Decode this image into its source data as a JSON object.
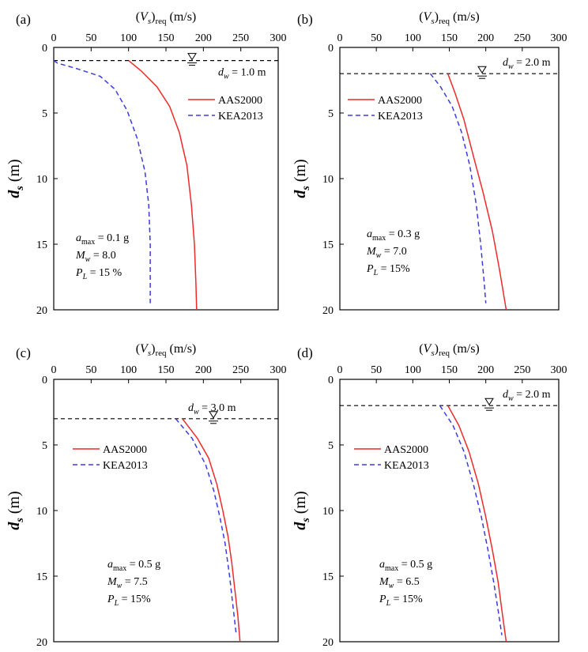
{
  "colors": {
    "aas": "#ee2a2a",
    "kea": "#3b3bdd",
    "axis": "#000000"
  },
  "chart_data": [
    {
      "panel_label": "(a)",
      "type": "line",
      "xlabel_var": "V",
      "xlabel_sub": "s",
      "xlabel_paren_sub": "req",
      "xlabel_unit": "(m/s)",
      "ylabel_var": "d",
      "ylabel_sub": "s",
      "ylabel_unit": "(m)",
      "xlim": [
        0,
        300
      ],
      "ylim": [
        0,
        20
      ],
      "y_reversed": true,
      "xticks": [
        0,
        50,
        100,
        150,
        200,
        250,
        300
      ],
      "yticks": [
        0,
        5,
        10,
        15,
        20
      ],
      "water_table": {
        "depth": 1.0,
        "label_var": "d",
        "label_sub": "w",
        "label_value": "= 1.0 m"
      },
      "legend": {
        "position": "upper-right",
        "entries": [
          "AAS2000",
          "KEA2013"
        ]
      },
      "params": [
        {
          "var": "a",
          "sub": "max",
          "value": " = 0.1 g"
        },
        {
          "var": "M",
          "sub": "w",
          "value": " = 8.0"
        },
        {
          "var": "P",
          "sub": "L",
          "value": " = 15 %"
        }
      ],
      "series": [
        {
          "name": "AAS2000",
          "style": "solid",
          "points": [
            [
              100,
              1.0
            ],
            [
              117,
              1.8
            ],
            [
              138,
              3.0
            ],
            [
              155,
              4.5
            ],
            [
              168,
              6.5
            ],
            [
              178,
              9.0
            ],
            [
              184,
              12.0
            ],
            [
              188,
              15.0
            ],
            [
              190,
              18.0
            ],
            [
              191,
              20.0
            ]
          ]
        },
        {
          "name": "KEA2013",
          "style": "dashed",
          "points": [
            [
              0,
              1.0
            ],
            [
              5,
              1.2
            ],
            [
              30,
              1.6
            ],
            [
              62,
              2.2
            ],
            [
              82,
              3.2
            ],
            [
              98,
              4.8
            ],
            [
              112,
              7.0
            ],
            [
              122,
              9.5
            ],
            [
              127,
              12.0
            ],
            [
              129,
              15.0
            ],
            [
              129,
              19.5
            ]
          ]
        }
      ]
    },
    {
      "panel_label": "(b)",
      "type": "line",
      "xlabel_var": "V",
      "xlabel_sub": "s",
      "xlabel_paren_sub": "req",
      "xlabel_unit": "(m/s)",
      "ylabel_var": "d",
      "ylabel_sub": "s",
      "ylabel_unit": "(m)",
      "xlim": [
        0,
        300
      ],
      "ylim": [
        0,
        20
      ],
      "y_reversed": true,
      "xticks": [
        0,
        50,
        100,
        150,
        200,
        250,
        300
      ],
      "yticks": [
        0,
        5,
        10,
        15,
        20
      ],
      "water_table": {
        "depth": 2.0,
        "label_var": "d",
        "label_sub": "w",
        "label_value": "= 2.0 m"
      },
      "legend": {
        "position": "upper-left",
        "entries": [
          "AAS2000",
          "KEA2013"
        ]
      },
      "params": [
        {
          "var": "a",
          "sub": "max",
          "value": " = 0.3 g"
        },
        {
          "var": "M",
          "sub": "w",
          "value": " = 7.0"
        },
        {
          "var": "P",
          "sub": "L",
          "value": " = 15%"
        }
      ],
      "series": [
        {
          "name": "AAS2000",
          "style": "solid",
          "points": [
            [
              148,
              2.0
            ],
            [
              158,
              3.5
            ],
            [
              170,
              5.5
            ],
            [
              184,
              8.5
            ],
            [
              196,
              11.0
            ],
            [
              209,
              14.0
            ],
            [
              219,
              17.0
            ],
            [
              228,
              20.0
            ]
          ]
        },
        {
          "name": "KEA2013",
          "style": "dashed",
          "points": [
            [
              124,
              2.0
            ],
            [
              138,
              3.0
            ],
            [
              154,
              4.5
            ],
            [
              167,
              6.5
            ],
            [
              178,
              9.0
            ],
            [
              187,
              12.0
            ],
            [
              193,
              15.0
            ],
            [
              198,
              18.0
            ],
            [
              200,
              19.5
            ]
          ]
        }
      ]
    },
    {
      "panel_label": "(c)",
      "type": "line",
      "xlabel_var": "V",
      "xlabel_sub": "s",
      "xlabel_paren_sub": "req",
      "xlabel_unit": "(m/s)",
      "ylabel_var": "d",
      "ylabel_sub": "s",
      "ylabel_unit": "(m)",
      "xlim": [
        0,
        300
      ],
      "ylim": [
        0,
        20
      ],
      "y_reversed": true,
      "xticks": [
        0,
        50,
        100,
        150,
        200,
        250,
        300
      ],
      "yticks": [
        0,
        5,
        10,
        15,
        20
      ],
      "water_table": {
        "depth": 3.0,
        "label_var": "d",
        "label_sub": "w",
        "label_value": "= 3.0 m"
      },
      "legend": {
        "position": "upper-left",
        "entries": [
          "AAS2000",
          "KEA2013"
        ]
      },
      "params": [
        {
          "var": "a",
          "sub": "max",
          "value": " = 0.5 g"
        },
        {
          "var": "M",
          "sub": "w",
          "value": " = 7.5"
        },
        {
          "var": "P",
          "sub": "L",
          "value": " = 15%"
        }
      ],
      "series": [
        {
          "name": "AAS2000",
          "style": "solid",
          "points": [
            [
              172,
              3.0
            ],
            [
              192,
              4.5
            ],
            [
              207,
              6.0
            ],
            [
              218,
              8.0
            ],
            [
              226,
              10.0
            ],
            [
              233,
              12.0
            ],
            [
              238,
              14.0
            ],
            [
              242,
              16.0
            ],
            [
              246,
              18.0
            ],
            [
              249,
              20.0
            ]
          ]
        },
        {
          "name": "KEA2013",
          "style": "dashed",
          "points": [
            [
              163,
              3.0
            ],
            [
              185,
              4.5
            ],
            [
              203,
              6.5
            ],
            [
              214,
              8.5
            ],
            [
              222,
              10.5
            ],
            [
              229,
              12.5
            ],
            [
              235,
              15.0
            ],
            [
              240,
              17.5
            ],
            [
              244,
              19.5
            ]
          ]
        }
      ]
    },
    {
      "panel_label": "(d)",
      "type": "line",
      "xlabel_var": "V",
      "xlabel_sub": "s",
      "xlabel_paren_sub": "req",
      "xlabel_unit": "(m/s)",
      "ylabel_var": "d",
      "ylabel_sub": "s",
      "ylabel_unit": "(m)",
      "xlim": [
        0,
        300
      ],
      "ylim": [
        0,
        20
      ],
      "y_reversed": true,
      "xticks": [
        0,
        50,
        100,
        150,
        200,
        250,
        300
      ],
      "yticks": [
        0,
        5,
        10,
        15,
        20
      ],
      "water_table": {
        "depth": 2.0,
        "label_var": "d",
        "label_sub": "w",
        "label_value": "= 2.0 m"
      },
      "legend": {
        "position": "upper-left",
        "entries": [
          "AAS2000",
          "KEA2013"
        ]
      },
      "params": [
        {
          "var": "a",
          "sub": "max",
          "value": " = 0.5 g"
        },
        {
          "var": "M",
          "sub": "w",
          "value": " = 6.5"
        },
        {
          "var": "P",
          "sub": "L",
          "value": " = 15%"
        }
      ],
      "series": [
        {
          "name": "AAS2000",
          "style": "solid",
          "points": [
            [
              148,
              2.0
            ],
            [
              163,
              3.5
            ],
            [
              177,
              5.5
            ],
            [
              190,
              8.0
            ],
            [
              200,
              10.5
            ],
            [
              209,
              13.0
            ],
            [
              217,
              15.5
            ],
            [
              223,
              18.0
            ],
            [
              228,
              20.0
            ]
          ]
        },
        {
          "name": "KEA2013",
          "style": "dashed",
          "points": [
            [
              137,
              2.0
            ],
            [
              155,
              3.5
            ],
            [
              170,
              5.5
            ],
            [
              183,
              8.0
            ],
            [
              194,
              10.5
            ],
            [
              203,
              13.0
            ],
            [
              211,
              15.5
            ],
            [
              218,
              18.0
            ],
            [
              222,
              19.5
            ]
          ]
        }
      ]
    }
  ]
}
